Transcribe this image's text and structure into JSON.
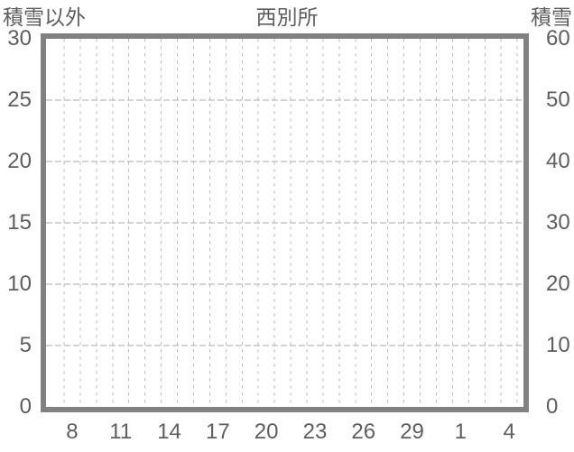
{
  "page": {
    "background": "#ffffff"
  },
  "chart_data": {
    "type": "line",
    "title": "西別所",
    "left_axis": {
      "label": "積雪以外",
      "min": 0,
      "max": 30,
      "tick_step": 5,
      "ticks": [
        "0",
        "5",
        "10",
        "15",
        "20",
        "25",
        "30"
      ]
    },
    "right_axis": {
      "label": "積雪",
      "min": 0,
      "max": 60,
      "tick_step": 10,
      "ticks": [
        "0",
        "10",
        "20",
        "30",
        "40",
        "50",
        "60"
      ]
    },
    "x_axis": {
      "tick_labels": [
        "8",
        "11",
        "14",
        "17",
        "20",
        "23",
        "26",
        "29",
        "1",
        "4"
      ],
      "days_between_labels": 3,
      "total_day_slots": 29
    },
    "series": [],
    "grid": {
      "vertical": "dashed, one per day slot",
      "horizontal": "dashed, one per left-axis tick step"
    },
    "legend": null,
    "colors": {
      "frame": "#818181",
      "text": "#5e5e5e",
      "grid_vertical": "#bdbdbd",
      "grid_horizontal": "#a9a9a9",
      "background": "#ffffff"
    }
  }
}
